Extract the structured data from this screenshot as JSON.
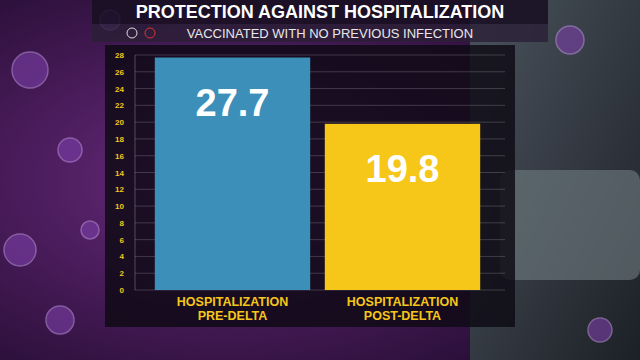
{
  "chart_data": {
    "type": "bar",
    "title": "PROTECTION AGAINST HOSPITALIZATION",
    "subtitle": "VACCINATED WITH NO PREVIOUS INFECTION",
    "categories": [
      "HOSPITALIZATION PRE-DELTA",
      "HOSPITALIZATION POST-DELTA"
    ],
    "values": [
      27.7,
      19.8
    ],
    "colors": [
      "#3b8fb8",
      "#f6c619"
    ],
    "ylim": [
      0,
      28
    ],
    "yticks": [
      0,
      2,
      4,
      6,
      8,
      10,
      12,
      14,
      16,
      18,
      20,
      22,
      24,
      26,
      28
    ],
    "grid": true,
    "data_labels": true
  }
}
